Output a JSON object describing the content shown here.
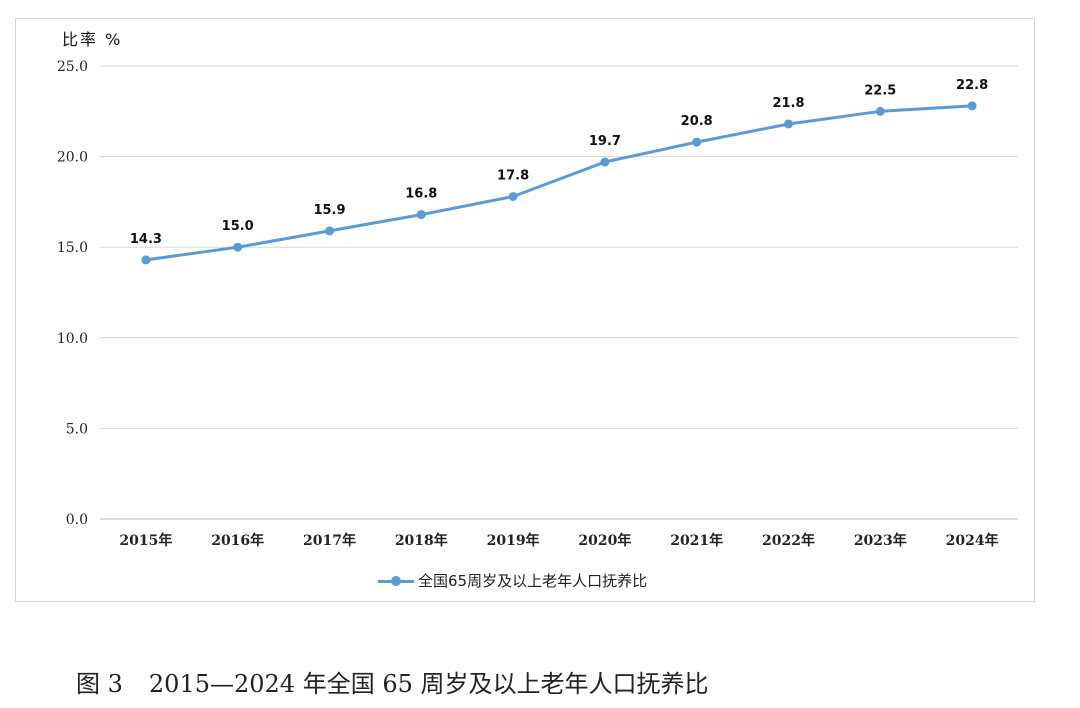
{
  "chart_data": {
    "type": "line",
    "ylabel": "比率 %",
    "ylim": [
      0,
      25
    ],
    "yticks": [
      "0.0",
      "5.0",
      "10.0",
      "15.0",
      "20.0",
      "25.0"
    ],
    "categories": [
      "2015年",
      "2016年",
      "2017年",
      "2018年",
      "2019年",
      "2020年",
      "2021年",
      "2022年",
      "2023年",
      "2024年"
    ],
    "series": [
      {
        "name": "全国65周岁及以上老年人口抚养比",
        "values": [
          14.3,
          15.0,
          15.9,
          16.8,
          17.8,
          19.7,
          20.8,
          21.8,
          22.5,
          22.8
        ],
        "labels": [
          "14.3",
          "15.0",
          "15.9",
          "16.8",
          "17.8",
          "19.7",
          "20.8",
          "21.8",
          "22.5",
          "22.8"
        ]
      }
    ],
    "grid": true,
    "legend": "bottom",
    "line_color": "#5b9bd5"
  },
  "caption": {
    "label": "图 3",
    "text": "2015—2024 年全国 65 周岁及以上老年人口抚养比"
  }
}
